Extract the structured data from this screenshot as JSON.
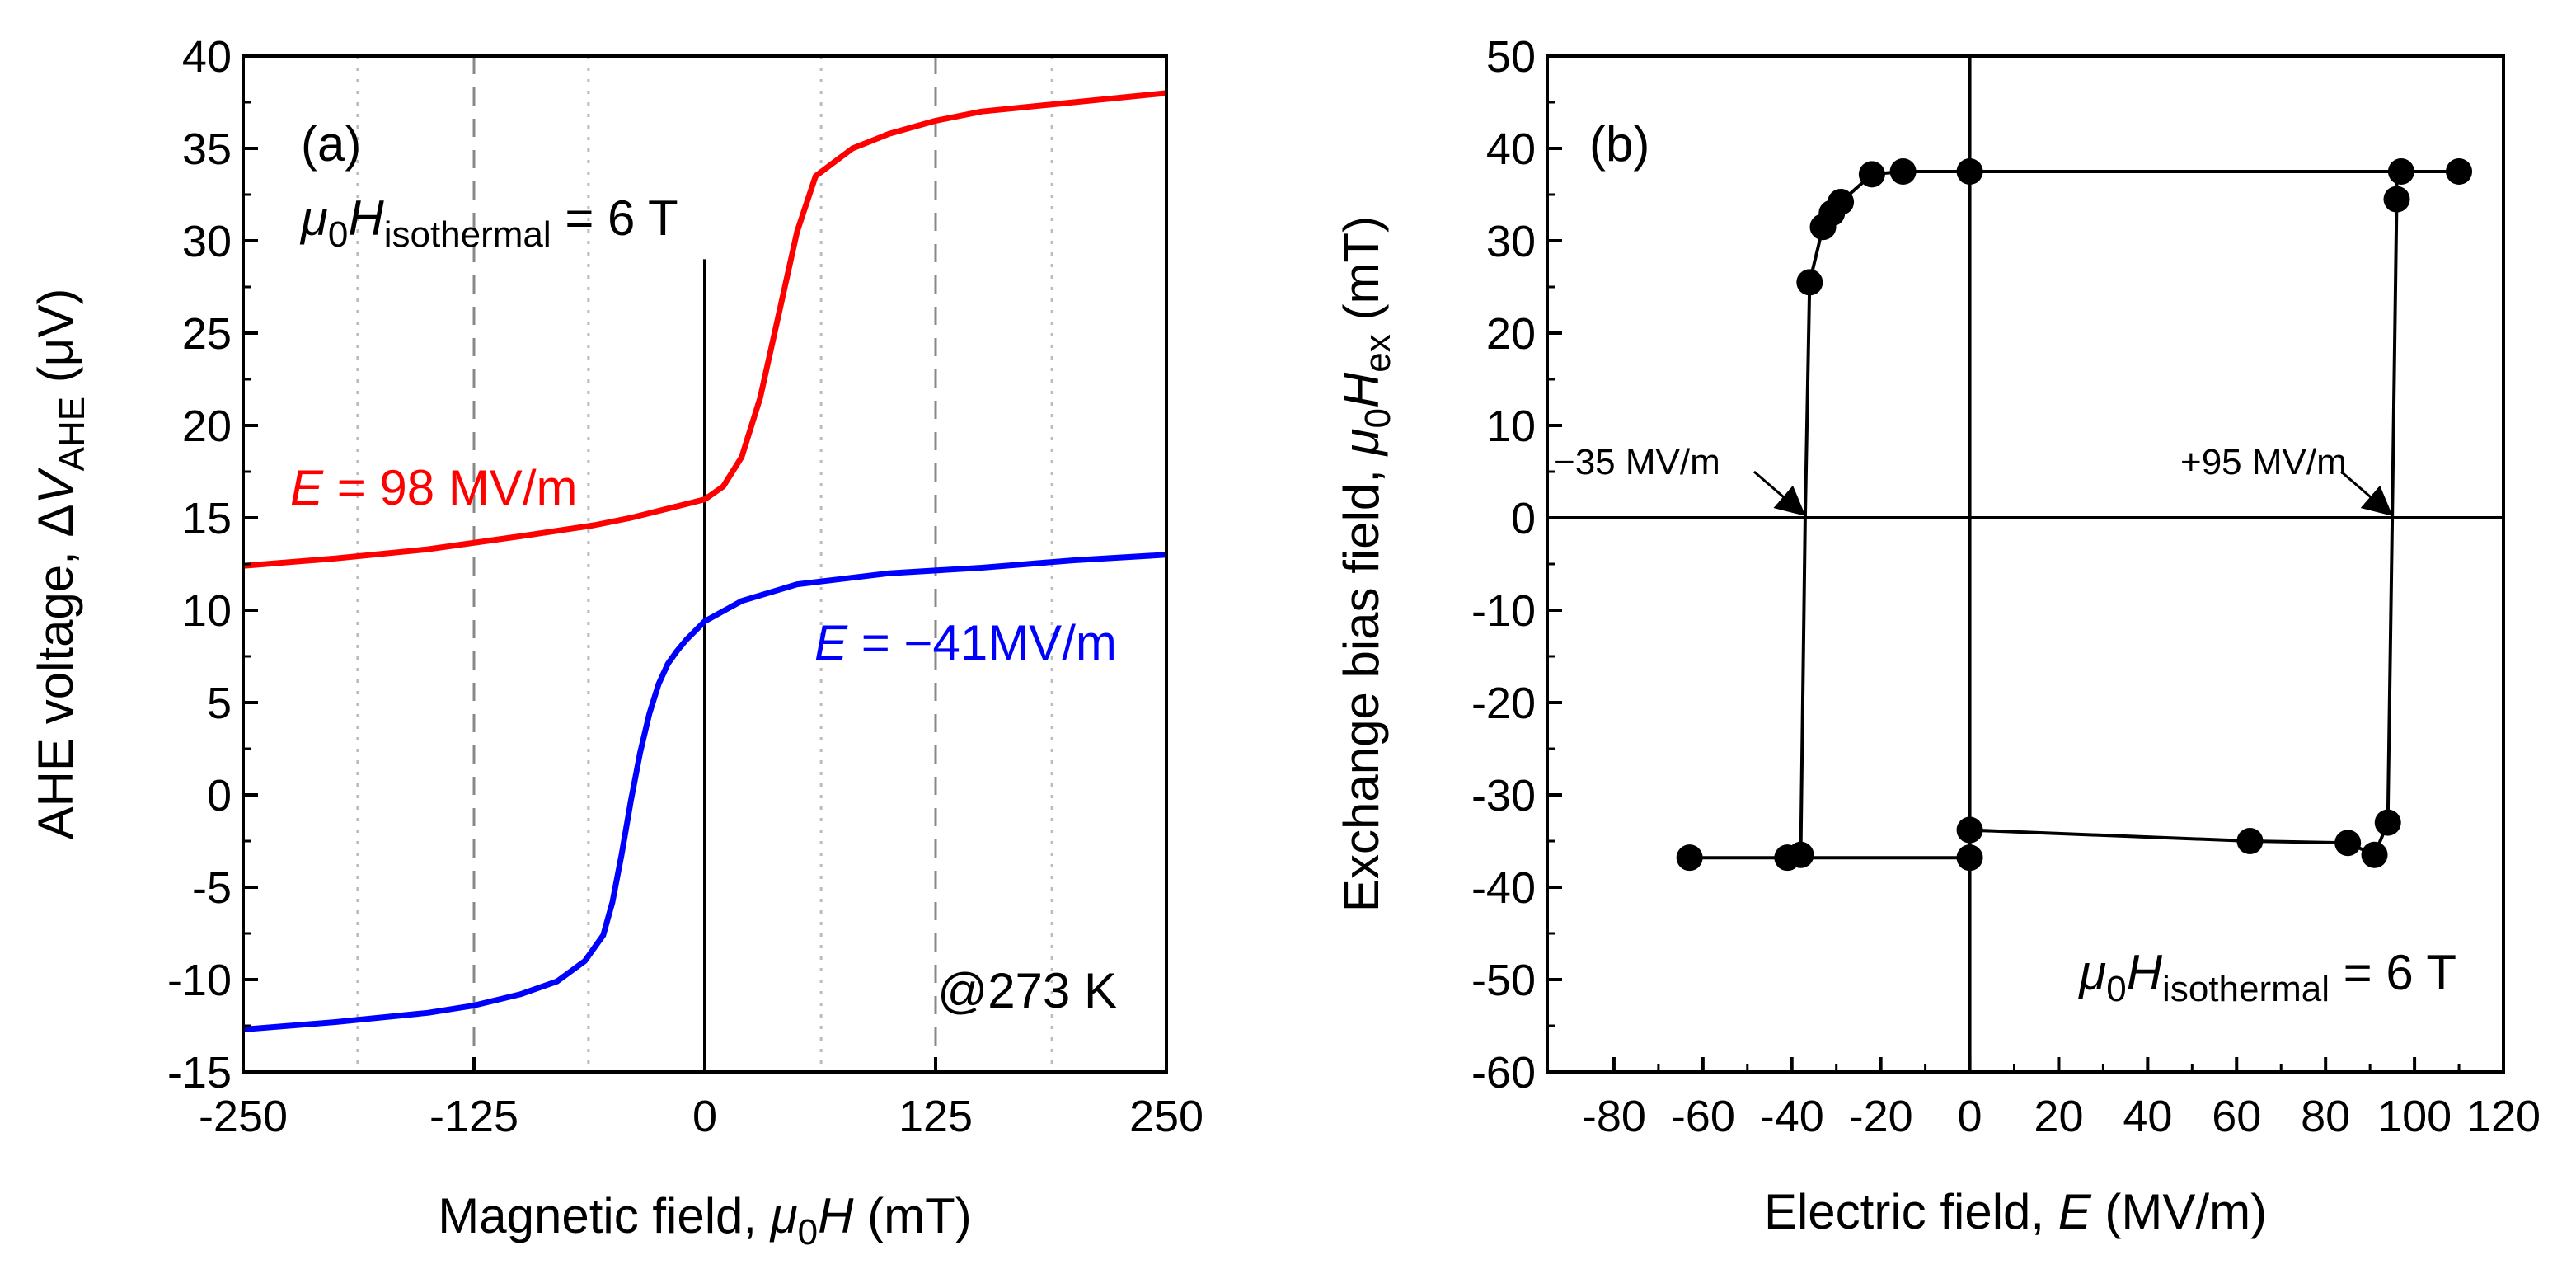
{
  "chart_data": [
    {
      "panel": "(a)",
      "type": "line",
      "xlabel": {
        "text": "Magnetic field, ",
        "mu": "μ",
        "sub0": "0",
        "var": "H",
        "unit": " (mT)"
      },
      "ylabel": {
        "text": "AHE voltage, Δ",
        "var": "V",
        "sub": "AHE",
        "unit": " (μV)"
      },
      "xlim": [
        -250,
        250
      ],
      "ylim": [
        -15,
        40
      ],
      "xticks": [
        -250,
        -125,
        0,
        125,
        250
      ],
      "yticks": [
        -15,
        -10,
        -5,
        0,
        5,
        10,
        15,
        20,
        25,
        30,
        35,
        40
      ],
      "ytick_labels": [
        "-15",
        "-10",
        "-5",
        "0",
        "5",
        "10",
        "15",
        "20",
        "25",
        "30",
        "35",
        "40"
      ],
      "dashed_vlines": [
        -125,
        125
      ],
      "dotted_vlines": [
        -188,
        -63,
        63,
        188
      ],
      "zero_line_top": 29,
      "series": [
        {
          "name": "E = 98 MV/m",
          "label_var": "E",
          "label_value": " = 98 MV/m",
          "color": "#ff0000",
          "x": [
            -250,
            -200,
            -150,
            -100,
            -60,
            -40,
            -20,
            0,
            10,
            20,
            30,
            40,
            50,
            60,
            80,
            100,
            125,
            150,
            200,
            250
          ],
          "y": [
            12.4,
            12.8,
            13.3,
            14.0,
            14.6,
            15.0,
            15.5,
            16.0,
            16.7,
            18.3,
            21.5,
            26.0,
            30.5,
            33.5,
            35.0,
            35.8,
            36.5,
            37.0,
            37.5,
            38.0
          ]
        },
        {
          "name": "E = −41MV/m",
          "label_var": "E",
          "label_value": " = −41MV/m",
          "color": "#0000ff",
          "x": [
            -250,
            -200,
            -150,
            -125,
            -100,
            -80,
            -65,
            -55,
            -50,
            -45,
            -40,
            -35,
            -30,
            -25,
            -20,
            -15,
            -10,
            -5,
            0,
            20,
            50,
            100,
            150,
            200,
            250
          ],
          "y": [
            -12.7,
            -12.3,
            -11.8,
            -11.4,
            -10.8,
            -10.1,
            -9.0,
            -7.6,
            -5.8,
            -3.2,
            -0.3,
            2.3,
            4.4,
            6.0,
            7.1,
            7.8,
            8.4,
            8.9,
            9.4,
            10.5,
            11.4,
            12.0,
            12.3,
            12.7,
            13.0
          ]
        }
      ],
      "annotations": {
        "panel_label": "(a)",
        "iso_mu": "μ",
        "iso_sub0": "0",
        "iso_var": "H",
        "iso_sub": "isothermal",
        "iso_value": " = 6 T",
        "temperature": "@273 K"
      }
    },
    {
      "panel": "(b)",
      "type": "scatter",
      "xlabel": {
        "text": "Electric field, ",
        "var": "E",
        "unit": " (MV/m)"
      },
      "ylabel": {
        "text": "Exchange bias field, ",
        "mu": "μ",
        "sub0": "0",
        "var": "H",
        "sub": "ex",
        "unit": " (mT)"
      },
      "xlim": [
        -95,
        120
      ],
      "ylim": [
        -60,
        50
      ],
      "xticks": [
        -80,
        -60,
        -40,
        -20,
        0,
        20,
        40,
        60,
        80,
        100,
        120
      ],
      "yticks": [
        -60,
        -50,
        -40,
        -30,
        -20,
        -10,
        0,
        10,
        20,
        30,
        40,
        50
      ],
      "ytick_labels": [
        "-60",
        "-50",
        "-40",
        "-30",
        "-20",
        "-10",
        "0",
        "10",
        "20",
        "30",
        "40",
        "50"
      ],
      "loop": [
        [
          -63,
          -36.8
        ],
        [
          -41,
          -36.8
        ],
        [
          -38,
          -36.5
        ],
        [
          -37,
          0
        ],
        [
          -36,
          25.5
        ],
        [
          -33,
          31.5
        ],
        [
          -31,
          33.0
        ],
        [
          -29,
          34.2
        ],
        [
          -22,
          37.2
        ],
        [
          -15,
          37.5
        ],
        [
          0,
          37.5
        ],
        [
          97,
          37.5
        ],
        [
          98,
          37.5
        ],
        [
          110,
          37.5
        ],
        [
          96,
          37.5
        ],
        [
          96,
          34.5
        ],
        [
          95,
          0
        ],
        [
          94,
          -33.0
        ],
        [
          91,
          -36.5
        ],
        [
          85,
          -35.2
        ],
        [
          63,
          -35.0
        ],
        [
          0,
          -33.8
        ],
        [
          0,
          -36.8
        ],
        [
          -38,
          -36.8
        ]
      ],
      "points": [
        [
          -63,
          -36.8
        ],
        [
          -41,
          -36.8
        ],
        [
          -38,
          -36.5
        ],
        [
          -36,
          25.5
        ],
        [
          -33,
          31.5
        ],
        [
          -31,
          33.0
        ],
        [
          -29,
          34.2
        ],
        [
          -22,
          37.2
        ],
        [
          -15,
          37.5
        ],
        [
          0,
          37.5
        ],
        [
          97,
          37.5
        ],
        [
          110,
          37.5
        ],
        [
          96,
          34.5
        ],
        [
          94,
          -33.0
        ],
        [
          91,
          -36.5
        ],
        [
          85,
          -35.2
        ],
        [
          63,
          -35.0
        ],
        [
          0,
          -33.8
        ],
        [
          0,
          -36.8
        ]
      ],
      "annotations": {
        "panel_label": "(b)",
        "neg_switch": "−35 MV/m",
        "neg_switch_x": -37,
        "pos_switch": "+95 MV/m",
        "pos_switch_x": 95,
        "iso_mu": "μ",
        "iso_sub0": "0",
        "iso_var": "H",
        "iso_sub": "isothermal",
        "iso_value": " = 6 T"
      }
    }
  ]
}
